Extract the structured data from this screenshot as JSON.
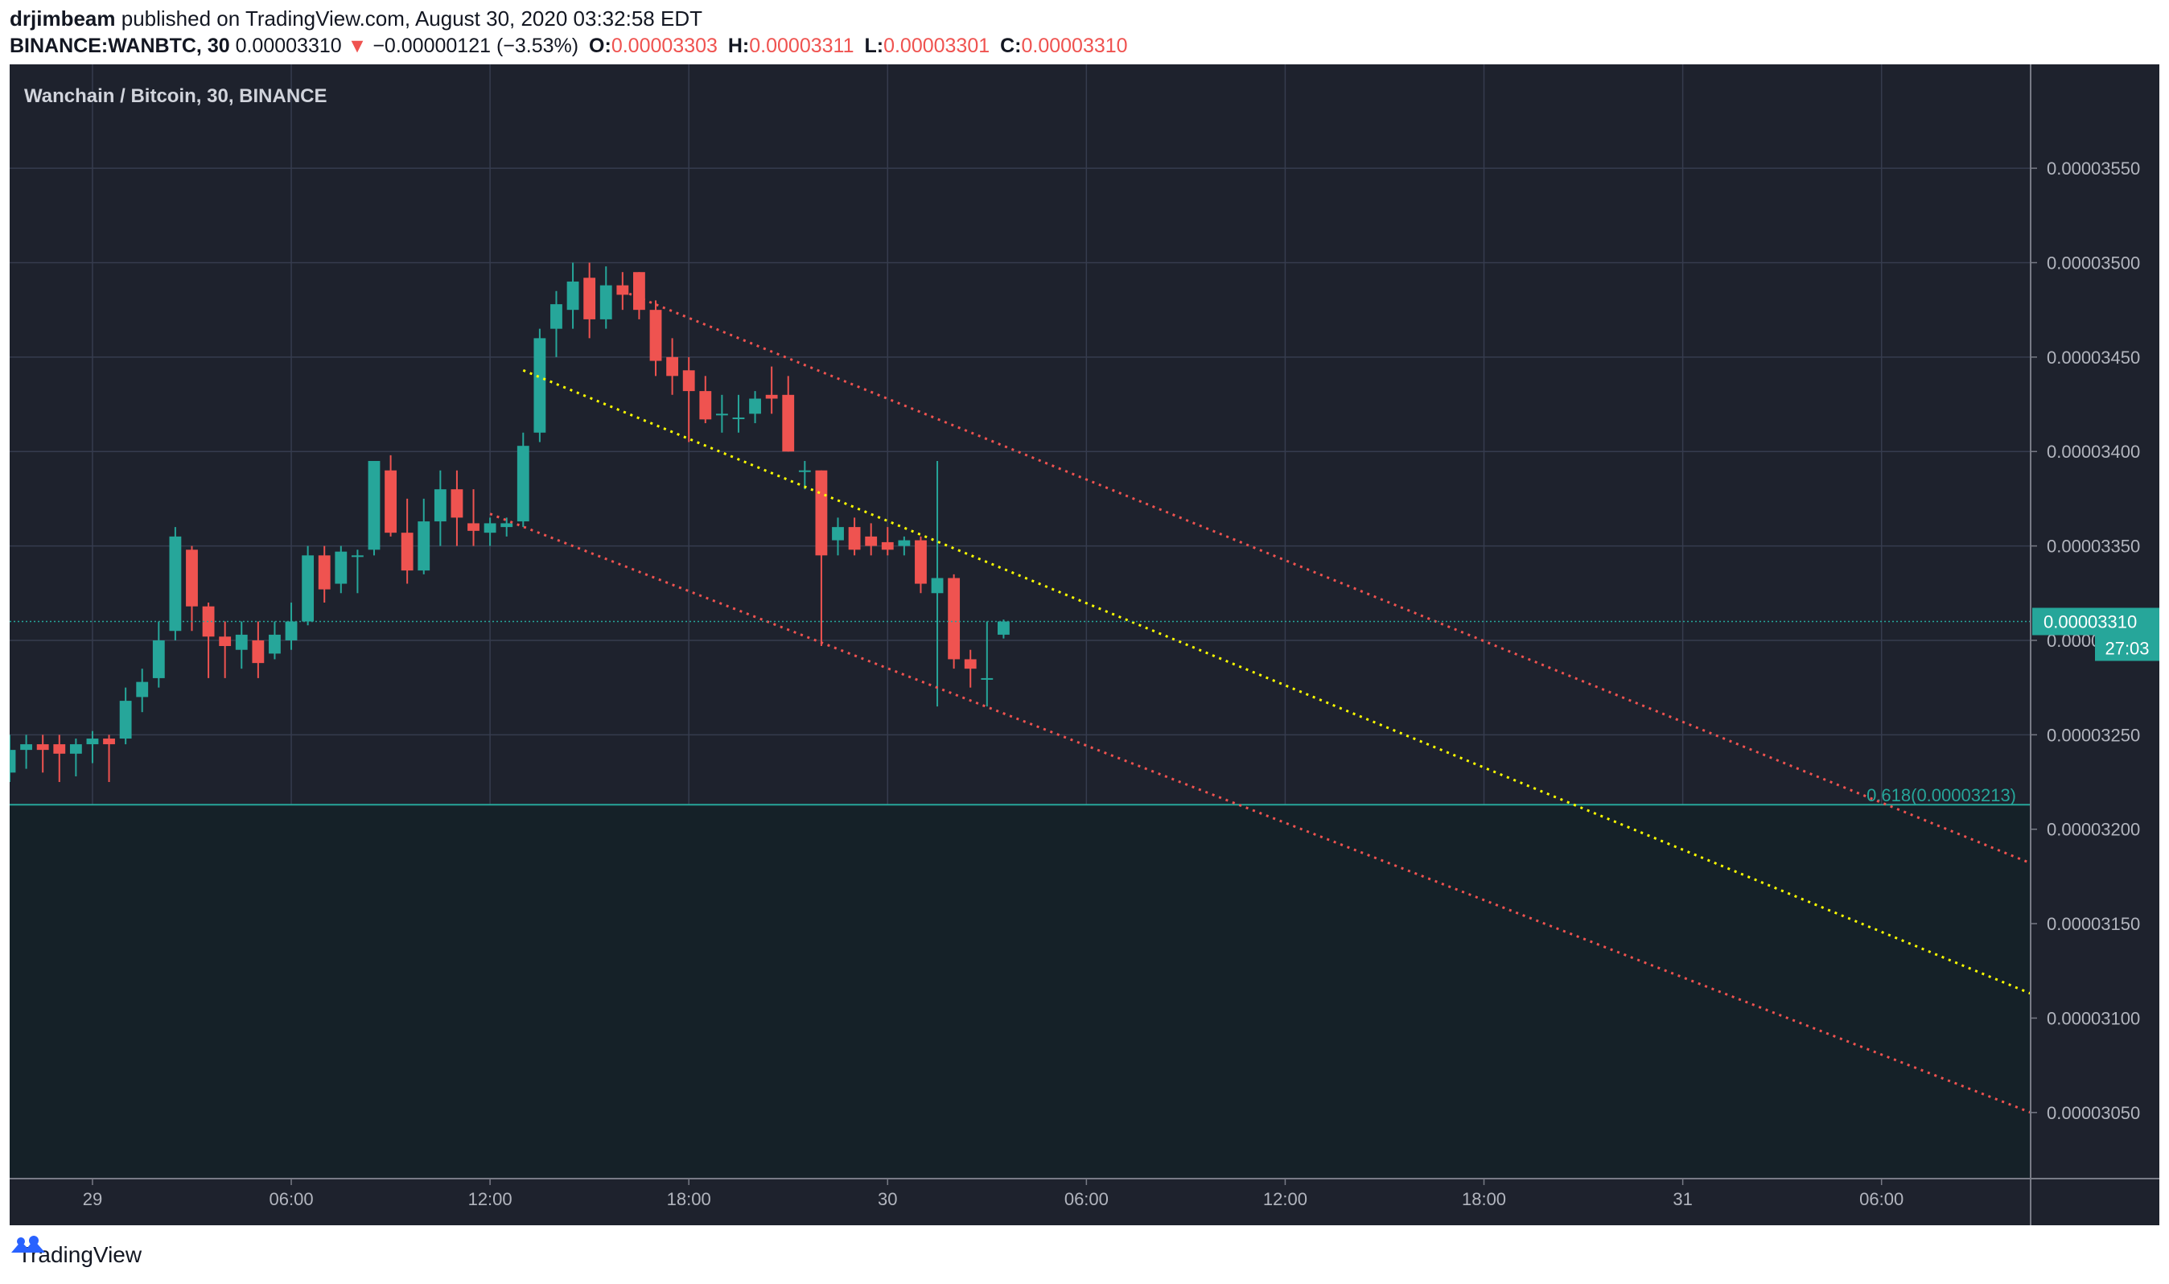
{
  "header": {
    "author": "drjimbeam",
    "published_text": "published on TradingView.com, August 30, 2020 03:32:58 EDT",
    "symbol": "BINANCE:WANBTC, 30",
    "last_price": "0.00003310",
    "change_arrow": "▼",
    "change": "−0.00000121 (−3.53%)",
    "open_label": "O:",
    "open": "0.00003303",
    "high_label": "H:",
    "high": "0.00003311",
    "low_label": "L:",
    "low": "0.00003301",
    "close_label": "C:",
    "close": "0.00003310"
  },
  "footer": {
    "brand": "TradingView"
  },
  "colors": {
    "background": "#1e222d",
    "grid": "#363c4e",
    "up": "#26a69a",
    "down": "#ef5350",
    "channel": "#ef5350",
    "midline": "#ffff00",
    "fib": "#26a69a",
    "text": "#b2b5be"
  },
  "chart_data": {
    "type": "candlestick",
    "title": "Wanchain / Bitcoin, 30, BINANCE",
    "interval_minutes": 30,
    "ylim": [
      3.015e-05,
      3.605e-05
    ],
    "xlim": [
      "2020-08-28 21:30",
      "2020-08-31 10:30"
    ],
    "y_ticks": [
      "0.00003550",
      "0.00003500",
      "0.00003450",
      "0.00003400",
      "0.00003350",
      "0.00003300",
      "0.00003250",
      "0.00003200",
      "0.00003150",
      "0.00003100",
      "0.00003050"
    ],
    "x_ticks": [
      {
        "t": "2020-08-29 00:00",
        "label": "29"
      },
      {
        "t": "2020-08-29 06:00",
        "label": "06:00"
      },
      {
        "t": "2020-08-29 12:00",
        "label": "12:00"
      },
      {
        "t": "2020-08-29 18:00",
        "label": "18:00"
      },
      {
        "t": "2020-08-30 00:00",
        "label": "30"
      },
      {
        "t": "2020-08-30 06:00",
        "label": "06:00"
      },
      {
        "t": "2020-08-30 12:00",
        "label": "12:00"
      },
      {
        "t": "2020-08-30 18:00",
        "label": "18:00"
      },
      {
        "t": "2020-08-31 00:00",
        "label": "31"
      },
      {
        "t": "2020-08-31 06:00",
        "label": "06:00"
      }
    ],
    "candles": [
      {
        "t": "2020-08-28 21:30",
        "o": 3.23e-05,
        "h": 3.25e-05,
        "l": 3.225e-05,
        "c": 3.242e-05
      },
      {
        "t": "2020-08-28 22:00",
        "o": 3.242e-05,
        "h": 3.25e-05,
        "l": 3.232e-05,
        "c": 3.245e-05
      },
      {
        "t": "2020-08-28 22:30",
        "o": 3.245e-05,
        "h": 3.25e-05,
        "l": 3.23e-05,
        "c": 3.242e-05
      },
      {
        "t": "2020-08-28 23:00",
        "o": 3.245e-05,
        "h": 3.25e-05,
        "l": 3.225e-05,
        "c": 3.24e-05
      },
      {
        "t": "2020-08-28 23:30",
        "o": 3.24e-05,
        "h": 3.248e-05,
        "l": 3.228e-05,
        "c": 3.245e-05
      },
      {
        "t": "2020-08-29 00:00",
        "o": 3.245e-05,
        "h": 3.252e-05,
        "l": 3.235e-05,
        "c": 3.248e-05
      },
      {
        "t": "2020-08-29 00:30",
        "o": 3.248e-05,
        "h": 3.25e-05,
        "l": 3.225e-05,
        "c": 3.245e-05
      },
      {
        "t": "2020-08-29 01:00",
        "o": 3.248e-05,
        "h": 3.275e-05,
        "l": 3.245e-05,
        "c": 3.268e-05
      },
      {
        "t": "2020-08-29 01:30",
        "o": 3.27e-05,
        "h": 3.285e-05,
        "l": 3.262e-05,
        "c": 3.278e-05
      },
      {
        "t": "2020-08-29 02:00",
        "o": 3.28e-05,
        "h": 3.31e-05,
        "l": 3.275e-05,
        "c": 3.3e-05
      },
      {
        "t": "2020-08-29 02:30",
        "o": 3.305e-05,
        "h": 3.36e-05,
        "l": 3.3e-05,
        "c": 3.355e-05
      },
      {
        "t": "2020-08-29 03:00",
        "o": 3.348e-05,
        "h": 3.35e-05,
        "l": 3.305e-05,
        "c": 3.318e-05
      },
      {
        "t": "2020-08-29 03:30",
        "o": 3.318e-05,
        "h": 3.32e-05,
        "l": 3.28e-05,
        "c": 3.302e-05
      },
      {
        "t": "2020-08-29 04:00",
        "o": 3.302e-05,
        "h": 3.31e-05,
        "l": 3.28e-05,
        "c": 3.297e-05
      },
      {
        "t": "2020-08-29 04:30",
        "o": 3.295e-05,
        "h": 3.31e-05,
        "l": 3.285e-05,
        "c": 3.303e-05
      },
      {
        "t": "2020-08-29 05:00",
        "o": 3.3e-05,
        "h": 3.31e-05,
        "l": 3.28e-05,
        "c": 3.288e-05
      },
      {
        "t": "2020-08-29 05:30",
        "o": 3.293e-05,
        "h": 3.31e-05,
        "l": 3.29e-05,
        "c": 3.303e-05
      },
      {
        "t": "2020-08-29 06:00",
        "o": 3.3e-05,
        "h": 3.32e-05,
        "l": 3.295e-05,
        "c": 3.31e-05
      },
      {
        "t": "2020-08-29 06:30",
        "o": 3.31e-05,
        "h": 3.35e-05,
        "l": 3.308e-05,
        "c": 3.345e-05
      },
      {
        "t": "2020-08-29 07:00",
        "o": 3.345e-05,
        "h": 3.35e-05,
        "l": 3.32e-05,
        "c": 3.327e-05
      },
      {
        "t": "2020-08-29 07:30",
        "o": 3.33e-05,
        "h": 3.35e-05,
        "l": 3.325e-05,
        "c": 3.347e-05
      },
      {
        "t": "2020-08-29 08:00",
        "o": 3.345e-05,
        "h": 3.348e-05,
        "l": 3.325e-05,
        "c": 3.345e-05
      },
      {
        "t": "2020-08-29 08:30",
        "o": 3.348e-05,
        "h": 3.395e-05,
        "l": 3.345e-05,
        "c": 3.395e-05
      },
      {
        "t": "2020-08-29 09:00",
        "o": 3.39e-05,
        "h": 3.398e-05,
        "l": 3.355e-05,
        "c": 3.357e-05
      },
      {
        "t": "2020-08-29 09:30",
        "o": 3.357e-05,
        "h": 3.375e-05,
        "l": 3.33e-05,
        "c": 3.337e-05
      },
      {
        "t": "2020-08-29 10:00",
        "o": 3.337e-05,
        "h": 3.375e-05,
        "l": 3.335e-05,
        "c": 3.363e-05
      },
      {
        "t": "2020-08-29 10:30",
        "o": 3.363e-05,
        "h": 3.39e-05,
        "l": 3.35e-05,
        "c": 3.38e-05
      },
      {
        "t": "2020-08-29 11:00",
        "o": 3.38e-05,
        "h": 3.39e-05,
        "l": 3.35e-05,
        "c": 3.365e-05
      },
      {
        "t": "2020-08-29 11:30",
        "o": 3.362e-05,
        "h": 3.38e-05,
        "l": 3.35e-05,
        "c": 3.358e-05
      },
      {
        "t": "2020-08-29 12:00",
        "o": 3.357e-05,
        "h": 3.365e-05,
        "l": 3.35e-05,
        "c": 3.362e-05
      },
      {
        "t": "2020-08-29 12:30",
        "o": 3.36e-05,
        "h": 3.365e-05,
        "l": 3.355e-05,
        "c": 3.362e-05
      },
      {
        "t": "2020-08-29 13:00",
        "o": 3.363e-05,
        "h": 3.41e-05,
        "l": 3.36e-05,
        "c": 3.403e-05
      },
      {
        "t": "2020-08-29 13:30",
        "o": 3.41e-05,
        "h": 3.465e-05,
        "l": 3.405e-05,
        "c": 3.46e-05
      },
      {
        "t": "2020-08-29 14:00",
        "o": 3.465e-05,
        "h": 3.485e-05,
        "l": 3.45e-05,
        "c": 3.478e-05
      },
      {
        "t": "2020-08-29 14:30",
        "o": 3.475e-05,
        "h": 3.5e-05,
        "l": 3.465e-05,
        "c": 3.49e-05
      },
      {
        "t": "2020-08-29 15:00",
        "o": 3.492e-05,
        "h": 3.5e-05,
        "l": 3.46e-05,
        "c": 3.47e-05
      },
      {
        "t": "2020-08-29 15:30",
        "o": 3.47e-05,
        "h": 3.498e-05,
        "l": 3.465e-05,
        "c": 3.488e-05
      },
      {
        "t": "2020-08-29 16:00",
        "o": 3.488e-05,
        "h": 3.495e-05,
        "l": 3.475e-05,
        "c": 3.483e-05
      },
      {
        "t": "2020-08-29 16:30",
        "o": 3.495e-05,
        "h": 3.495e-05,
        "l": 3.47e-05,
        "c": 3.475e-05
      },
      {
        "t": "2020-08-29 17:00",
        "o": 3.475e-05,
        "h": 3.48e-05,
        "l": 3.44e-05,
        "c": 3.448e-05
      },
      {
        "t": "2020-08-29 17:30",
        "o": 3.45e-05,
        "h": 3.46e-05,
        "l": 3.43e-05,
        "c": 3.44e-05
      },
      {
        "t": "2020-08-29 18:00",
        "o": 3.443e-05,
        "h": 3.45e-05,
        "l": 3.405e-05,
        "c": 3.432e-05
      },
      {
        "t": "2020-08-29 18:30",
        "o": 3.432e-05,
        "h": 3.44e-05,
        "l": 3.415e-05,
        "c": 3.417e-05
      },
      {
        "t": "2020-08-29 19:00",
        "o": 3.42e-05,
        "h": 3.43e-05,
        "l": 3.41e-05,
        "c": 3.42e-05
      },
      {
        "t": "2020-08-29 19:30",
        "o": 3.418e-05,
        "h": 3.43e-05,
        "l": 3.41e-05,
        "c": 3.418e-05
      },
      {
        "t": "2020-08-29 20:00",
        "o": 3.42e-05,
        "h": 3.432e-05,
        "l": 3.415e-05,
        "c": 3.428e-05
      },
      {
        "t": "2020-08-29 20:30",
        "o": 3.43e-05,
        "h": 3.445e-05,
        "l": 3.42e-05,
        "c": 3.428e-05
      },
      {
        "t": "2020-08-29 21:00",
        "o": 3.43e-05,
        "h": 3.44e-05,
        "l": 3.4e-05,
        "c": 3.4e-05
      },
      {
        "t": "2020-08-29 21:30",
        "o": 3.39e-05,
        "h": 3.395e-05,
        "l": 3.38e-05,
        "c": 3.39e-05
      },
      {
        "t": "2020-08-29 22:00",
        "o": 3.39e-05,
        "h": 3.39e-05,
        "l": 3.297e-05,
        "c": 3.345e-05
      },
      {
        "t": "2020-08-29 22:30",
        "o": 3.353e-05,
        "h": 3.365e-05,
        "l": 3.345e-05,
        "c": 3.36e-05
      },
      {
        "t": "2020-08-29 23:00",
        "o": 3.36e-05,
        "h": 3.365e-05,
        "l": 3.345e-05,
        "c": 3.348e-05
      },
      {
        "t": "2020-08-29 23:30",
        "o": 3.355e-05,
        "h": 3.362e-05,
        "l": 3.345e-05,
        "c": 3.35e-05
      },
      {
        "t": "2020-08-30 00:00",
        "o": 3.352e-05,
        "h": 3.36e-05,
        "l": 3.345e-05,
        "c": 3.348e-05
      },
      {
        "t": "2020-08-30 00:30",
        "o": 3.35e-05,
        "h": 3.355e-05,
        "l": 3.345e-05,
        "c": 3.353e-05
      },
      {
        "t": "2020-08-30 01:00",
        "o": 3.353e-05,
        "h": 3.355e-05,
        "l": 3.325e-05,
        "c": 3.33e-05
      },
      {
        "t": "2020-08-30 01:30",
        "o": 3.325e-05,
        "h": 3.395e-05,
        "l": 3.265e-05,
        "c": 3.333e-05
      },
      {
        "t": "2020-08-30 02:00",
        "o": 3.333e-05,
        "h": 3.335e-05,
        "l": 3.285e-05,
        "c": 3.29e-05
      },
      {
        "t": "2020-08-30 02:30",
        "o": 3.29e-05,
        "h": 3.295e-05,
        "l": 3.275e-05,
        "c": 3.285e-05
      },
      {
        "t": "2020-08-30 03:00",
        "o": 3.28e-05,
        "h": 3.31e-05,
        "l": 3.265e-05,
        "c": 3.28e-05
      },
      {
        "t": "2020-08-30 03:30",
        "o": 3.303e-05,
        "h": 3.311e-05,
        "l": 3.301e-05,
        "c": 3.31e-05
      }
    ],
    "last_price": 3.31e-05,
    "countdown": "27:03",
    "fib_level": {
      "label": "0.618(0.00003213)",
      "value": 3.213e-05
    },
    "channel": {
      "upper": [
        {
          "t": "2020-08-29 16:00",
          "y": 3.485e-05
        },
        {
          "t": "2020-08-31 10:30",
          "y": 3.182e-05
        }
      ],
      "mid": [
        {
          "t": "2020-08-29 13:00",
          "y": 3.443e-05
        },
        {
          "t": "2020-08-31 10:30",
          "y": 3.113e-05
        }
      ],
      "lower": [
        {
          "t": "2020-08-29 12:00",
          "y": 3.367e-05
        },
        {
          "t": "2020-08-31 10:30",
          "y": 3.05e-05
        }
      ]
    }
  }
}
